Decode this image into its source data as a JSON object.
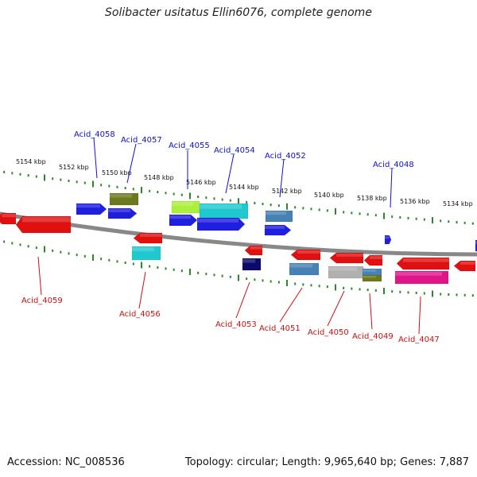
{
  "title": "Solibacter usitatus Ellin6076, complete genome",
  "footer": {
    "accession": "Accession: NC_008536",
    "summary": "Topology: circular; Length: 9,965,640 bp; Genes: 7,887"
  },
  "colors": {
    "top_label": "#1010cc",
    "bottom_label": "#cc1010",
    "tick": "#2a8a2a",
    "backbone": "#888888"
  },
  "ticks": [
    "5154 kbp",
    "5152 kbp",
    "5150 kbp",
    "5148 kbp",
    "5146 kbp",
    "5144 kbp",
    "5142 kbp",
    "5140 kbp",
    "5138 kbp",
    "5136 kbp",
    "5134 kbp"
  ],
  "top_labels": [
    "Acid_4058",
    "Acid_4057",
    "Acid_4055",
    "Acid_4054",
    "Acid_4052",
    "Acid_4048"
  ],
  "bottom_labels": [
    "Acid_4059",
    "Acid_4056",
    "Acid_4053",
    "Acid_4051",
    "Acid_4050",
    "Acid_4049",
    "Acid_4047"
  ],
  "gene_colors": [
    "#1f1fe0",
    "#1f1fe0",
    "#6b7a1e",
    "#aaf03c",
    "#20c8d0",
    "#1f1fe0",
    "#1f1fe0",
    "#4682b4",
    "#1f1fe0",
    "#1f1fe0",
    "#e01010",
    "#e01010",
    "#e01010",
    "#20c8d0",
    "#e01010",
    "#0a0a6a",
    "#e01010",
    "#4682b4",
    "#e01010",
    "#b0b0b0",
    "#e01010",
    "#4682b4",
    "#6b7a1e",
    "#e01010",
    "#e0158a",
    "#e01010",
    "#1f1fe0"
  ]
}
